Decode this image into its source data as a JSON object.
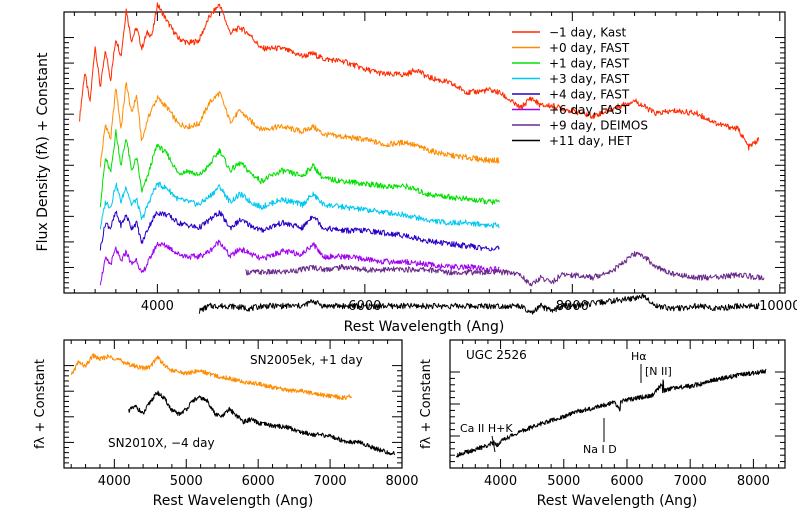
{
  "chart_data": [
    {
      "type": "line",
      "panel": "main",
      "xlabel": "Rest Wavelength (Ang)",
      "ylabel": "Flux Density (fλ) + Constant",
      "xlim": [
        3100,
        10050
      ],
      "ylim": [
        -0.3,
        10.5
      ],
      "xticks": [
        4000,
        6000,
        8000,
        10000
      ],
      "xtick_labels": [
        "4000",
        "6000",
        "8000",
        "10000"
      ],
      "legend_position": "top-right",
      "series": [
        {
          "name": "−1 day, Kast",
          "color": "#ff2a00",
          "offset": 6.0,
          "x": [
            3250,
            3300,
            3350,
            3400,
            3450,
            3500,
            3550,
            3600,
            3650,
            3700,
            3750,
            3800,
            3850,
            3900,
            3950,
            4000,
            4100,
            4200,
            4300,
            4400,
            4500,
            4600,
            4700,
            4800,
            4900,
            5000,
            5200,
            5400,
            5500,
            5600,
            5800,
            6000,
            6200,
            6400,
            6500,
            6600,
            6800,
            7000,
            7200,
            7300,
            7400,
            7500,
            7600,
            7700,
            7800,
            8000,
            8200,
            8400,
            8600,
            8800,
            9000,
            9200,
            9400,
            9600,
            9700,
            9800
          ],
          "y": [
            0.4,
            2.2,
            1.0,
            3.2,
            1.6,
            3.0,
            1.9,
            3.5,
            2.8,
            4.6,
            3.4,
            3.9,
            3.1,
            3.7,
            3.6,
            4.8,
            4.1,
            3.5,
            3.3,
            3.4,
            4.3,
            4.8,
            3.7,
            3.9,
            3.6,
            3.1,
            3.1,
            2.8,
            2.9,
            2.7,
            2.6,
            2.3,
            2.1,
            2.1,
            2.3,
            2.0,
            1.8,
            1.4,
            1.5,
            1.4,
            1.1,
            0.8,
            1.2,
            0.9,
            0.9,
            0.7,
            0.5,
            0.8,
            1.1,
            0.6,
            0.7,
            0.6,
            0.2,
            0.0,
            -0.7,
            -0.4
          ]
        },
        {
          "name": "+0 day, FAST",
          "color": "#ff8c00",
          "offset": 5.0,
          "x": [
            3450,
            3500,
            3550,
            3600,
            3650,
            3700,
            3750,
            3800,
            3850,
            3900,
            3950,
            4000,
            4100,
            4200,
            4300,
            4400,
            4500,
            4600,
            4700,
            4800,
            4900,
            5000,
            5200,
            5400,
            5500,
            5600,
            5800,
            6000,
            6200,
            6400,
            6600,
            6800,
            7000,
            7200,
            7300
          ],
          "y": [
            -0.4,
            1.2,
            0.6,
            2.6,
            1.0,
            2.8,
            1.6,
            2.3,
            0.5,
            1.3,
            1.8,
            2.2,
            1.8,
            1.2,
            1.1,
            1.2,
            2.0,
            2.4,
            1.3,
            1.7,
            1.3,
            1.0,
            1.1,
            0.9,
            1.1,
            0.8,
            0.7,
            0.6,
            0.4,
            0.5,
            0.2,
            0.0,
            -0.1,
            -0.2,
            -0.2
          ]
        },
        {
          "name": "+1 day, FAST",
          "color": "#00e000",
          "offset": 4.0,
          "x": [
            3450,
            3500,
            3550,
            3600,
            3650,
            3700,
            3750,
            3800,
            3850,
            3900,
            3950,
            4000,
            4100,
            4200,
            4300,
            4400,
            4500,
            4600,
            4700,
            4800,
            4900,
            5000,
            5200,
            5400,
            5500,
            5600,
            5800,
            6000,
            6200,
            6400,
            6600,
            6800,
            7000,
            7200,
            7300
          ],
          "y": [
            -0.9,
            0.9,
            0.3,
            1.9,
            0.6,
            1.7,
            0.4,
            0.9,
            -0.4,
            0.1,
            0.8,
            1.4,
            1.0,
            0.3,
            0.4,
            0.2,
            0.6,
            1.2,
            0.4,
            0.7,
            0.3,
            0.0,
            0.4,
            0.2,
            0.6,
            0.1,
            0.0,
            -0.1,
            -0.2,
            -0.2,
            -0.5,
            -0.6,
            -0.7,
            -0.8,
            -0.8
          ]
        },
        {
          "name": "+3 day, FAST",
          "color": "#00c8f0",
          "offset": 3.0,
          "x": [
            3450,
            3500,
            3550,
            3600,
            3650,
            3700,
            3750,
            3800,
            3850,
            3900,
            3950,
            4000,
            4100,
            4200,
            4300,
            4400,
            4500,
            4600,
            4700,
            4800,
            4900,
            5000,
            5200,
            5400,
            5500,
            5600,
            5800,
            6000,
            6200,
            6400,
            6600,
            6800,
            7000,
            7200,
            7300
          ],
          "y": [
            -0.8,
            0.2,
            0.0,
            0.9,
            0.2,
            0.8,
            0.1,
            0.3,
            -0.5,
            0.0,
            0.5,
            0.9,
            0.7,
            0.3,
            0.2,
            0.1,
            0.4,
            0.8,
            0.2,
            0.5,
            0.2,
            0.0,
            0.3,
            0.1,
            0.5,
            0.1,
            0.0,
            -0.1,
            -0.2,
            -0.3,
            -0.5,
            -0.6,
            -0.6,
            -0.7,
            -0.7
          ]
        },
        {
          "name": "+4 day, FAST",
          "color": "#2a00c8",
          "offset": 2.0,
          "x": [
            3450,
            3500,
            3550,
            3600,
            3650,
            3700,
            3750,
            3800,
            3850,
            3900,
            3950,
            4000,
            4100,
            4200,
            4300,
            4400,
            4500,
            4600,
            4700,
            4800,
            4900,
            5000,
            5200,
            5400,
            5500,
            5600,
            5800,
            6000,
            6200,
            6400,
            6600,
            6800,
            7000,
            7200,
            7300
          ],
          "y": [
            -0.6,
            0.4,
            0.2,
            0.8,
            0.3,
            0.7,
            0.2,
            0.4,
            -0.4,
            0.1,
            0.5,
            0.8,
            0.7,
            0.4,
            0.3,
            0.2,
            0.5,
            0.8,
            0.2,
            0.5,
            0.3,
            0.1,
            0.4,
            0.2,
            0.7,
            0.2,
            0.1,
            0.1,
            0.0,
            -0.1,
            -0.3,
            -0.4,
            -0.5,
            -0.6,
            -0.6
          ]
        },
        {
          "name": "+6 day, FAST",
          "color": "#a000f0",
          "offset": 1.0,
          "x": [
            3450,
            3500,
            3550,
            3600,
            3650,
            3700,
            3750,
            3800,
            3850,
            3900,
            3950,
            4000,
            4100,
            4200,
            4300,
            4400,
            4500,
            4600,
            4700,
            4800,
            4900,
            5000,
            5200,
            5400,
            5500,
            5600,
            5800,
            6000,
            6200,
            6400,
            6600,
            6800,
            7000,
            7200,
            7300
          ],
          "y": [
            -0.9,
            0.0,
            -0.2,
            0.4,
            -0.1,
            0.3,
            -0.2,
            0.0,
            -0.6,
            -0.2,
            0.2,
            0.6,
            0.5,
            0.2,
            0.1,
            0.1,
            0.3,
            0.7,
            0.1,
            0.4,
            0.2,
            0.0,
            0.3,
            0.2,
            0.6,
            0.1,
            0.1,
            0.0,
            -0.1,
            -0.1,
            -0.2,
            -0.3,
            -0.3,
            -0.4,
            -0.4
          ]
        },
        {
          "name": "+9 day, DEIMOS",
          "color": "#6a2a8a",
          "offset": 0.0,
          "x": [
            4850,
            5000,
            5200,
            5400,
            5500,
            5600,
            5800,
            6000,
            6200,
            6400,
            6600,
            6800,
            7000,
            7200,
            7400,
            7500,
            7600,
            7700,
            7800,
            7900,
            8000,
            8200,
            8400,
            8500,
            8600,
            8700,
            8800,
            9000,
            9200,
            9400,
            9600,
            9800,
            9850
          ],
          "y": [
            0.5,
            0.5,
            0.5,
            0.6,
            0.7,
            0.6,
            0.7,
            0.6,
            0.6,
            0.6,
            0.6,
            0.5,
            0.5,
            0.5,
            0.5,
            0.4,
            0.0,
            0.3,
            0.1,
            0.4,
            0.4,
            0.3,
            0.6,
            0.9,
            1.2,
            1.1,
            0.7,
            0.4,
            0.3,
            0.3,
            0.4,
            0.3,
            0.3
          ]
        },
        {
          "name": "+11 day, HET",
          "color": "#000000",
          "offset": -1.0,
          "x": [
            4400,
            4500,
            4700,
            4900,
            5000,
            5200,
            5400,
            5500,
            5600,
            5800,
            6000,
            6200,
            6400,
            6600,
            6800,
            7000,
            7200,
            7400,
            7500,
            7600,
            7700,
            7800,
            7900,
            8000,
            8200,
            8400,
            8600,
            8700,
            8800,
            9000,
            9200,
            9400,
            9600,
            9800
          ],
          "y": [
            0.0,
            0.2,
            0.2,
            0.1,
            0.2,
            0.2,
            0.2,
            0.4,
            0.2,
            0.2,
            0.2,
            0.2,
            0.2,
            0.2,
            0.2,
            0.2,
            0.2,
            0.2,
            0.2,
            -0.1,
            0.2,
            0.0,
            0.2,
            0.2,
            0.3,
            0.4,
            0.5,
            0.6,
            0.2,
            0.1,
            0.2,
            0.1,
            0.2,
            0.2
          ]
        }
      ]
    },
    {
      "type": "line",
      "panel": "bottom-left",
      "xlabel": "Rest Wavelength (Ang)",
      "ylabel": "fλ + Constant",
      "xlim": [
        3300,
        8000
      ],
      "ylim": [
        0,
        10
      ],
      "xticks": [
        4000,
        5000,
        6000,
        7000,
        8000
      ],
      "xtick_labels": [
        "4000",
        "5000",
        "6000",
        "7000",
        "8000"
      ],
      "series": [
        {
          "name": "SN2005ek, +1 day",
          "color": "#ff8c00",
          "x": [
            3400,
            3500,
            3600,
            3700,
            3800,
            3900,
            4000,
            4200,
            4400,
            4500,
            4600,
            4700,
            4800,
            5000,
            5200,
            5400,
            5600,
            5800,
            6000,
            6200,
            6400,
            6600,
            6800,
            7000,
            7200,
            7300
          ],
          "y": [
            7.2,
            8.3,
            7.9,
            8.8,
            8.5,
            8.7,
            8.6,
            8.1,
            7.8,
            7.9,
            8.7,
            8.0,
            7.6,
            7.4,
            7.6,
            7.2,
            7.0,
            6.7,
            6.6,
            6.3,
            6.1,
            6.0,
            5.8,
            5.6,
            5.5,
            5.6
          ]
        },
        {
          "name": "SN2010X, −4 day",
          "color": "#000000",
          "x": [
            4200,
            4300,
            4400,
            4500,
            4600,
            4700,
            4800,
            4900,
            5000,
            5100,
            5200,
            5300,
            5400,
            5500,
            5600,
            5700,
            5800,
            5900,
            6000,
            6200,
            6400,
            6600,
            6800,
            7000,
            7200,
            7400,
            7600,
            7800,
            7900
          ],
          "y": [
            4.5,
            4.8,
            4.2,
            5.2,
            5.9,
            5.4,
            4.5,
            4.2,
            4.6,
            5.3,
            5.5,
            5.2,
            4.2,
            4.0,
            4.6,
            4.1,
            3.6,
            3.8,
            3.5,
            3.3,
            3.2,
            2.8,
            2.6,
            2.5,
            2.1,
            2.0,
            1.6,
            1.2,
            1.1
          ]
        }
      ],
      "labels": [
        "SN2005ek, +1 day",
        "SN2010X, −4 day"
      ]
    },
    {
      "type": "line",
      "panel": "bottom-right",
      "xlabel": "Rest Wavelength (Ang)",
      "ylabel": "fλ + Constant",
      "xlim": [
        3200,
        8500
      ],
      "ylim": [
        0,
        10
      ],
      "xticks": [
        4000,
        5000,
        6000,
        7000,
        8000
      ],
      "xtick_labels": [
        "4000",
        "5000",
        "6000",
        "7000",
        "8000"
      ],
      "title": "UGC 2526",
      "annotations": [
        "Ca II H+K",
        "Na I D",
        "Hα",
        "[N II]"
      ],
      "series": [
        {
          "name": "UGC 2526",
          "color": "#000000",
          "x": [
            3300,
            3500,
            3700,
            3900,
            3950,
            4000,
            4200,
            4400,
            4600,
            4800,
            5000,
            5200,
            5400,
            5600,
            5800,
            5890,
            5900,
            6000,
            6200,
            6400,
            6560,
            6565,
            6570,
            6585,
            6600,
            6800,
            7000,
            7200,
            7400,
            7600,
            7800,
            8000,
            8200
          ],
          "y": [
            1.0,
            1.3,
            1.6,
            2.0,
            1.8,
            2.1,
            2.6,
            3.0,
            3.4,
            3.7,
            4.0,
            4.4,
            4.6,
            4.9,
            5.1,
            4.6,
            5.2,
            5.3,
            5.5,
            5.7,
            6.6,
            5.9,
            7.0,
            6.0,
            6.1,
            6.3,
            6.4,
            6.6,
            6.9,
            7.1,
            7.3,
            7.4,
            7.6
          ]
        }
      ]
    }
  ]
}
